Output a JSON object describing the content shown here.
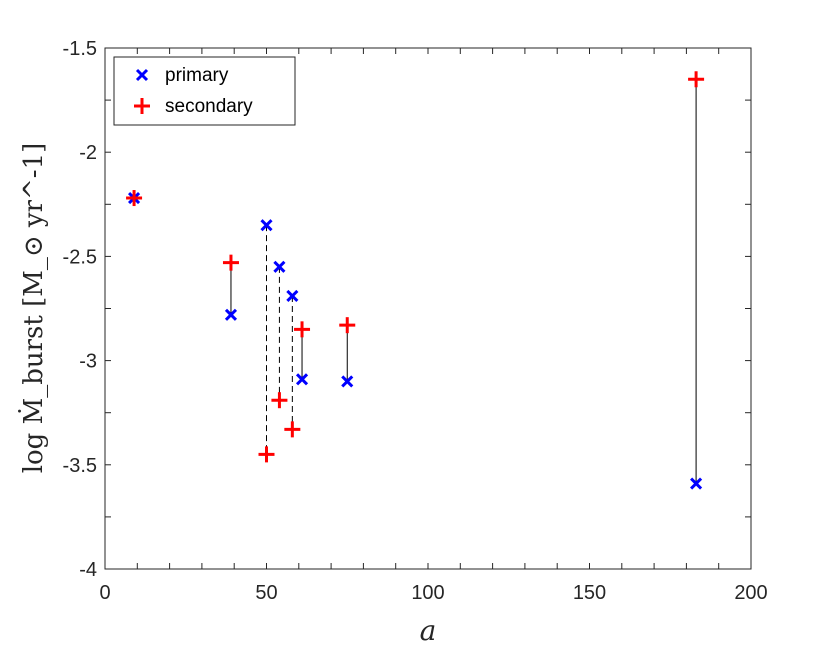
{
  "chart_data": {
    "type": "scatter",
    "xlabel": "a",
    "ylabel": "log Ṁ_burst [M_⊙ yr^-1]",
    "xlim": [
      0,
      200
    ],
    "ylim": [
      -4,
      -1.5
    ],
    "xticks": [
      0,
      50,
      100,
      150,
      200
    ],
    "xtick_labels": [
      "0",
      "50",
      "100",
      "150",
      "200"
    ],
    "yticks": [
      -4,
      -3.5,
      -3,
      -2.5,
      -2,
      -1.5
    ],
    "ytick_labels": [
      "-4",
      "-3.5",
      "-3",
      "-2.5",
      "-2",
      "-1.5"
    ],
    "grid": false,
    "legend_position": "top-left",
    "series": [
      {
        "name": "primary",
        "marker": "x",
        "color": "#0000ff",
        "points": [
          {
            "x": 9,
            "y": -2.22
          },
          {
            "x": 39,
            "y": -2.78
          },
          {
            "x": 50,
            "y": -2.35
          },
          {
            "x": 54,
            "y": -2.55
          },
          {
            "x": 58,
            "y": -2.69
          },
          {
            "x": 61,
            "y": -3.09
          },
          {
            "x": 75,
            "y": -3.1
          },
          {
            "x": 183,
            "y": -3.59
          }
        ]
      },
      {
        "name": "secondary",
        "marker": "+",
        "color": "#ff0000",
        "points": [
          {
            "x": 9,
            "y": -2.22
          },
          {
            "x": 39,
            "y": -2.53
          },
          {
            "x": 50,
            "y": -3.45
          },
          {
            "x": 54,
            "y": -3.19
          },
          {
            "x": 58,
            "y": -3.33
          },
          {
            "x": 61,
            "y": -2.85
          },
          {
            "x": 75,
            "y": -2.83
          },
          {
            "x": 183,
            "y": -1.65
          }
        ]
      }
    ],
    "connectors": [
      {
        "x": 39,
        "y1": -2.78,
        "y2": -2.53,
        "style": "solid"
      },
      {
        "x": 50,
        "y1": -2.35,
        "y2": -3.45,
        "style": "dashed"
      },
      {
        "x": 54,
        "y1": -2.55,
        "y2": -3.19,
        "style": "dashed"
      },
      {
        "x": 58,
        "y1": -2.69,
        "y2": -3.33,
        "style": "dashed"
      },
      {
        "x": 61,
        "y1": -3.09,
        "y2": -2.85,
        "style": "solid"
      },
      {
        "x": 75,
        "y1": -3.1,
        "y2": -2.83,
        "style": "solid"
      },
      {
        "x": 183,
        "y1": -3.59,
        "y2": -1.65,
        "style": "solid"
      }
    ]
  }
}
